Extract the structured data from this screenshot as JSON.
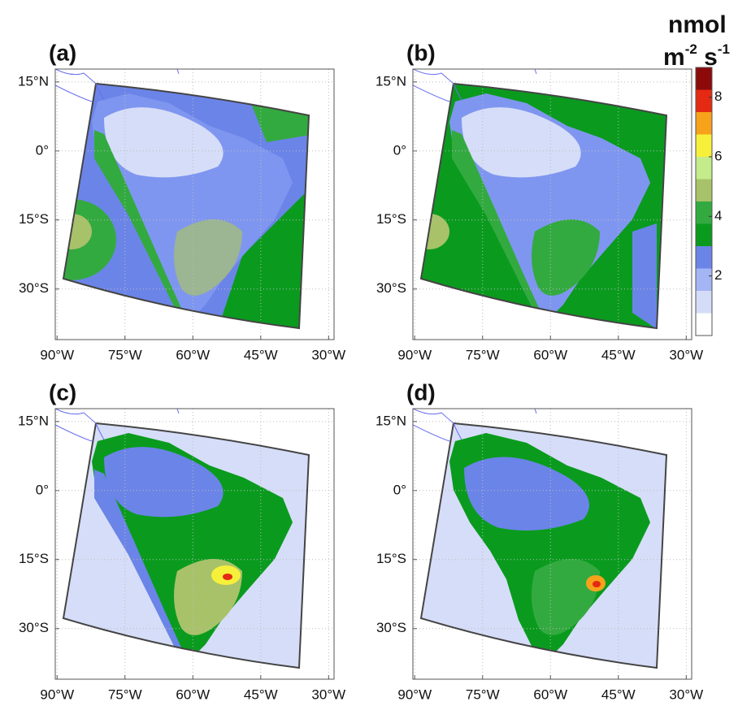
{
  "panels": [
    {
      "label": "(a)"
    },
    {
      "label": "(b)"
    },
    {
      "label": "(c)"
    },
    {
      "label": "(d)"
    }
  ],
  "axes": {
    "xlim": [
      -90.4,
      -28.8
    ],
    "ylim": [
      -41,
      17.8
    ],
    "xticks": [
      {
        "value": -90,
        "label": "90°W"
      },
      {
        "value": -75,
        "label": "75°W"
      },
      {
        "value": -60,
        "label": "60°W"
      },
      {
        "value": -45,
        "label": "45°W"
      },
      {
        "value": -30,
        "label": "30°W"
      }
    ],
    "yticks": [
      {
        "value": 15,
        "label": "15°N"
      },
      {
        "value": 0,
        "label": "0°"
      },
      {
        "value": -15,
        "label": "15°S"
      },
      {
        "value": -30,
        "label": "30°S"
      }
    ],
    "grid": true
  },
  "colorbar": {
    "title": "nmol",
    "unit": [
      "m",
      "-2",
      " s",
      "-1"
    ],
    "lim": [
      0,
      9
    ],
    "ticks": [
      2,
      4,
      6,
      8
    ],
    "bounds": [
      0,
      0.75,
      1.5,
      2.25,
      3,
      3.75,
      4.5,
      5.25,
      6,
      6.75,
      7.5,
      8.25,
      9
    ],
    "colors": [
      "#ffffff",
      "#d4dcf8",
      "#a3b5f5",
      "#6b84e8",
      "#0a9b1e",
      "#33aa40",
      "#a8c26a",
      "#c4ec8a",
      "#f6f03a",
      "#f7a21b",
      "#e42a12",
      "#8c0a0a"
    ]
  }
}
